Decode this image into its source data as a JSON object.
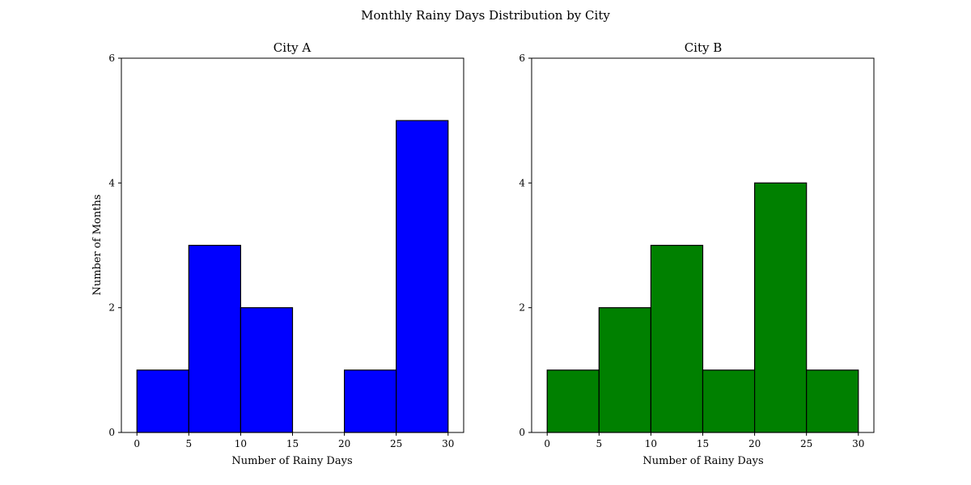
{
  "figure": {
    "title": "Monthly Rainy Days Distribution by City"
  },
  "chart_data": [
    {
      "type": "bar",
      "title": "City A",
      "xlabel": "Number of Rainy Days",
      "ylabel": "Number of Months",
      "bin_edges": [
        0,
        5,
        10,
        15,
        20,
        25,
        30
      ],
      "values": [
        1,
        3,
        2,
        0,
        1,
        5
      ],
      "color": "#0000ff",
      "edgecolor": "#000000",
      "xlim": [
        -1.5,
        31.5
      ],
      "ylim": [
        0,
        6
      ],
      "xticks": [
        0,
        5,
        10,
        15,
        20,
        25,
        30
      ],
      "yticks": [
        0,
        2,
        4,
        6
      ],
      "grid": false
    },
    {
      "type": "bar",
      "title": "City B",
      "xlabel": "Number of Rainy Days",
      "ylabel": "",
      "bin_edges": [
        0,
        5,
        10,
        15,
        20,
        25,
        30
      ],
      "values": [
        1,
        2,
        3,
        1,
        4,
        1
      ],
      "color": "#008000",
      "edgecolor": "#000000",
      "xlim": [
        -1.5,
        31.5
      ],
      "ylim": [
        0,
        6
      ],
      "xticks": [
        0,
        5,
        10,
        15,
        20,
        25,
        30
      ],
      "yticks": [
        0,
        2,
        4,
        6
      ],
      "grid": false
    }
  ]
}
